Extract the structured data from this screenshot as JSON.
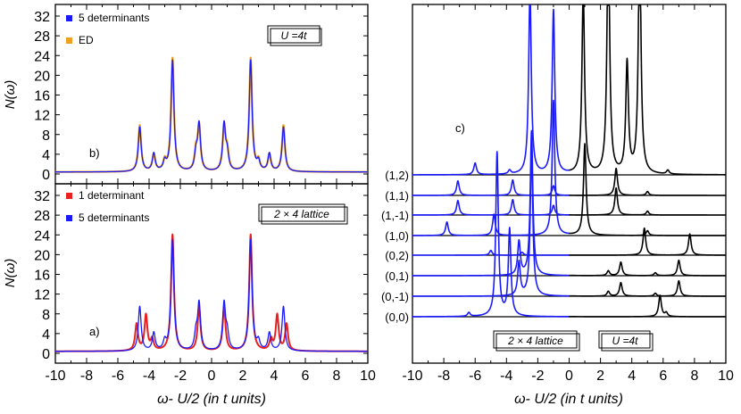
{
  "chart_data": [
    {
      "id": "panel_b",
      "type": "line",
      "tag": "b)",
      "xlim": [
        -10,
        10
      ],
      "ylim": [
        0,
        34
      ],
      "yticks": [
        0,
        4,
        8,
        12,
        16,
        20,
        24,
        28,
        32
      ],
      "ylabel": "N(ω)",
      "annotation": "U =4t",
      "legend": [
        {
          "label": "5 determinants",
          "color": "#1a1aff"
        },
        {
          "label": "ED",
          "color": "#f0a020"
        }
      ],
      "series": [
        {
          "name": "ED",
          "color": "#f0a020",
          "width": 2.2,
          "eta": 0.11,
          "peaks": [
            [
              -4.6,
              1.04
            ],
            [
              -3.7,
              0.38
            ],
            [
              -3.0,
              0.22
            ],
            [
              -2.5,
              2.55
            ],
            [
              -1.0,
              0.42
            ],
            [
              -0.8,
              1.0
            ],
            [
              0.8,
              1.0
            ],
            [
              1.0,
              0.42
            ],
            [
              2.5,
              2.55
            ],
            [
              3.0,
              0.22
            ],
            [
              3.7,
              0.38
            ],
            [
              4.6,
              1.04
            ]
          ]
        },
        {
          "name": "5 determinants",
          "color": "#1a1aff",
          "width": 1.3,
          "eta": 0.11,
          "peaks": [
            [
              -4.6,
              1.0
            ],
            [
              -3.7,
              0.4
            ],
            [
              -3.0,
              0.2
            ],
            [
              -2.5,
              2.5
            ],
            [
              -1.0,
              0.36
            ],
            [
              -0.8,
              1.05
            ],
            [
              0.8,
              1.05
            ],
            [
              1.0,
              0.36
            ],
            [
              2.5,
              2.5
            ],
            [
              3.0,
              0.2
            ],
            [
              3.7,
              0.4
            ],
            [
              4.6,
              1.0
            ]
          ]
        }
      ]
    },
    {
      "id": "panel_a",
      "type": "line",
      "tag": "a)",
      "xlim": [
        -10,
        10
      ],
      "ylim": [
        0,
        34
      ],
      "yticks": [
        0,
        4,
        8,
        12,
        16,
        20,
        24,
        28,
        32
      ],
      "xticks": [
        -10,
        -8,
        -6,
        -4,
        -2,
        0,
        2,
        4,
        6,
        8,
        10
      ],
      "xlabel": "ω- U/2 (in t units)",
      "ylabel": "N(ω)",
      "annotation": "2 × 4 lattice",
      "legend": [
        {
          "label": "1 determinant",
          "color": "#e82020"
        },
        {
          "label": "5 determinants",
          "color": "#1a1aff"
        }
      ],
      "series": [
        {
          "name": "1 determinant",
          "color": "#e82020",
          "width": 2.0,
          "eta": 0.11,
          "peaks": [
            [
              -4.8,
              0.6
            ],
            [
              -4.2,
              0.8
            ],
            [
              -3.8,
              0.25
            ],
            [
              -2.5,
              2.62
            ],
            [
              -0.8,
              1.0
            ],
            [
              0.8,
              1.0
            ],
            [
              2.5,
              2.62
            ],
            [
              3.8,
              0.25
            ],
            [
              4.2,
              0.8
            ],
            [
              4.8,
              0.6
            ]
          ]
        },
        {
          "name": "5 determinants",
          "color": "#1a1aff",
          "width": 1.3,
          "eta": 0.11,
          "peaks": [
            [
              -4.6,
              1.0
            ],
            [
              -3.7,
              0.4
            ],
            [
              -3.0,
              0.2
            ],
            [
              -2.5,
              2.5
            ],
            [
              -1.0,
              0.36
            ],
            [
              -0.8,
              1.05
            ],
            [
              0.8,
              1.05
            ],
            [
              1.0,
              0.36
            ],
            [
              2.5,
              2.5
            ],
            [
              3.0,
              0.2
            ],
            [
              3.7,
              0.4
            ],
            [
              4.6,
              1.0
            ]
          ]
        }
      ]
    },
    {
      "id": "panel_c",
      "type": "line",
      "tag": "c)",
      "xlim": [
        -10,
        10
      ],
      "xticks": [
        -10,
        -8,
        -6,
        -4,
        -2,
        0,
        2,
        4,
        6,
        8,
        10
      ],
      "xlabel": "ω- U/2 (in t units)",
      "annotations": [
        "2 × 4 lattice",
        "U =4t"
      ],
      "colors": {
        "occupied": "#1a1aff",
        "unoccupied": "#000000"
      },
      "series": [
        {
          "k": "(0,0)",
          "split": 0.0,
          "peaks": [
            [
              -6.4,
              0.04
            ],
            [
              -4.6,
              1.7
            ],
            [
              -3.8,
              0.9
            ],
            [
              5.8,
              0.22
            ],
            [
              6.2,
              0.04
            ]
          ]
        },
        {
          "k": "(0,-1)",
          "split": 0.0,
          "peaks": [
            [
              -3.2,
              0.35
            ],
            [
              -2.4,
              1.5
            ],
            [
              2.5,
              0.05
            ],
            [
              3.3,
              0.14
            ],
            [
              7.0,
              0.16
            ],
            [
              5.5,
              0.03
            ]
          ]
        },
        {
          "k": "(0,1)",
          "split": 0.0,
          "peaks": [
            [
              -3.2,
              0.35
            ],
            [
              -2.4,
              1.5
            ],
            [
              2.5,
              0.05
            ],
            [
              3.3,
              0.14
            ],
            [
              7.0,
              0.16
            ],
            [
              5.5,
              0.03
            ]
          ]
        },
        {
          "k": "(0,2)",
          "split": 0.0,
          "peaks": [
            [
              -5.0,
              0.05
            ],
            [
              -3.0,
              0.03
            ],
            [
              4.8,
              0.28
            ],
            [
              7.7,
              0.22
            ]
          ]
        },
        {
          "k": "(1,0)",
          "split": 0.0,
          "peaks": [
            [
              -7.8,
              0.14
            ],
            [
              -4.8,
              0.22
            ],
            [
              -1.0,
              1.4
            ],
            [
              1.0,
              0.95
            ],
            [
              5.0,
              0.05
            ]
          ]
        },
        {
          "k": "(1,-1)",
          "split": 0.0,
          "peaks": [
            [
              -7.1,
              0.15
            ],
            [
              -3.6,
              0.16
            ],
            [
              -1.0,
              0.1
            ],
            [
              3.0,
              0.28
            ],
            [
              5.0,
              0.04
            ]
          ]
        },
        {
          "k": "(1,1)",
          "split": 0.0,
          "peaks": [
            [
              -7.1,
              0.15
            ],
            [
              -3.6,
              0.16
            ],
            [
              -1.0,
              0.1
            ],
            [
              3.0,
              0.28
            ],
            [
              5.0,
              0.04
            ]
          ]
        },
        {
          "k": "(1,2)",
          "split": 0.0,
          "peaks": [
            [
              -6.0,
              0.12
            ],
            [
              -3.8,
              0.04
            ],
            [
              -2.5,
              1.9
            ],
            [
              -1.0,
              1.7
            ],
            [
              0.9,
              1.9
            ],
            [
              2.5,
              2.6
            ],
            [
              3.7,
              1.15
            ],
            [
              4.5,
              2.5
            ],
            [
              6.3,
              0.04
            ]
          ]
        }
      ]
    }
  ]
}
